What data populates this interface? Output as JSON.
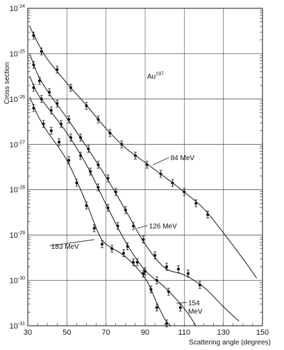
{
  "chart_data": {
    "type": "scatter",
    "title": "",
    "xlabel": "Scattering angle (degrees)",
    "ylabel": "Cross section",
    "x_scale": "linear",
    "y_scale": "log",
    "xlim": [
      30,
      150
    ],
    "ylim": [
      1e-31,
      1e-24
    ],
    "x_ticks": [
      30,
      50,
      70,
      90,
      110,
      130,
      150
    ],
    "y_ticks": [
      {
        "base": "10",
        "exp": "-24",
        "value": -24
      },
      {
        "base": "10",
        "exp": "-25",
        "value": -25
      },
      {
        "base": "10",
        "exp": "-26",
        "value": -26
      },
      {
        "base": "10",
        "exp": "-27",
        "value": -27
      },
      {
        "base": "10",
        "exp": "-28",
        "value": -28
      },
      {
        "base": "10",
        "exp": "-29",
        "value": -29
      },
      {
        "base": "10",
        "exp": "-30",
        "value": -30
      },
      {
        "base": "10",
        "exp": "-31",
        "value": -31
      }
    ],
    "grid": true,
    "annotations": {
      "target_base": "Au",
      "target_sup": "197",
      "target_pos": [
        91,
        -25.55
      ]
    },
    "series": [
      {
        "name": "84 MeV",
        "label_lines": [
          "84 MeV"
        ],
        "label_pos": [
          103,
          -27.35
        ],
        "arrow_to": [
          94,
          -27.45
        ],
        "points": [
          [
            33,
            -24.6
          ],
          [
            37,
            -24.95
          ],
          [
            45,
            -25.35
          ],
          [
            52,
            -25.75
          ],
          [
            60,
            -26.15
          ],
          [
            66,
            -26.45
          ],
          [
            72,
            -26.75
          ],
          [
            78,
            -27.0
          ],
          [
            85,
            -27.25
          ],
          [
            91,
            -27.45
          ],
          [
            98,
            -27.65
          ],
          [
            104,
            -27.85
          ],
          [
            110,
            -28.05
          ],
          [
            116,
            -28.3
          ],
          [
            122,
            -28.55
          ]
        ],
        "curve": [
          [
            31,
            -24.4
          ],
          [
            35,
            -24.75
          ],
          [
            40,
            -25.12
          ],
          [
            50,
            -25.65
          ],
          [
            60,
            -26.14
          ],
          [
            70,
            -26.65
          ],
          [
            80,
            -27.08
          ],
          [
            90,
            -27.4
          ],
          [
            100,
            -27.72
          ],
          [
            110,
            -28.05
          ],
          [
            120,
            -28.42
          ],
          [
            130,
            -28.95
          ],
          [
            140,
            -29.52
          ],
          [
            147,
            -29.95
          ]
        ]
      },
      {
        "name": "126 MeV",
        "label_lines": [
          "126 MeV"
        ],
        "label_pos": [
          92,
          -28.85
        ],
        "arrow_to": [
          86,
          -28.85
        ],
        "points": [
          [
            33,
            -25.25
          ],
          [
            36,
            -25.6
          ],
          [
            41,
            -25.85
          ],
          [
            45,
            -26.1
          ],
          [
            51,
            -26.45
          ],
          [
            57,
            -26.85
          ],
          [
            61,
            -27.1
          ],
          [
            66,
            -27.45
          ],
          [
            71,
            -27.75
          ],
          [
            75,
            -28.05
          ],
          [
            80,
            -28.45
          ],
          [
            84,
            -28.8
          ],
          [
            89,
            -29.1
          ],
          [
            95,
            -29.45
          ],
          [
            101,
            -29.7
          ],
          [
            107,
            -29.75
          ],
          [
            112,
            -29.85
          ],
          [
            118,
            -30.1
          ]
        ],
        "curve": [
          [
            31,
            -25.0
          ],
          [
            35,
            -25.45
          ],
          [
            40,
            -25.82
          ],
          [
            50,
            -26.42
          ],
          [
            60,
            -27.05
          ],
          [
            70,
            -27.72
          ],
          [
            80,
            -28.45
          ],
          [
            90,
            -29.2
          ],
          [
            100,
            -29.72
          ],
          [
            110,
            -29.88
          ],
          [
            120,
            -30.15
          ],
          [
            130,
            -30.58
          ],
          [
            138,
            -30.9
          ]
        ]
      },
      {
        "name": "154 MeV",
        "label_lines": [
          "154",
          "MeV"
        ],
        "label_pos": [
          112,
          -30.55
        ],
        "arrow_to": [
          106,
          -30.5
        ],
        "points": [
          [
            33,
            -25.75
          ],
          [
            37,
            -26.0
          ],
          [
            42,
            -26.25
          ],
          [
            47,
            -26.55
          ],
          [
            52,
            -26.85
          ],
          [
            57,
            -27.25
          ],
          [
            62,
            -27.6
          ],
          [
            66,
            -27.95
          ],
          [
            71,
            -28.4
          ],
          [
            76,
            -28.8
          ],
          [
            81,
            -29.25
          ],
          [
            86,
            -29.6
          ],
          [
            90,
            -29.8
          ],
          [
            96,
            -30.0
          ],
          [
            102,
            -30.25
          ],
          [
            108,
            -30.6
          ]
        ],
        "curve": [
          [
            31,
            -25.5
          ],
          [
            35,
            -25.88
          ],
          [
            40,
            -26.18
          ],
          [
            50,
            -26.75
          ],
          [
            60,
            -27.45
          ],
          [
            70,
            -28.32
          ],
          [
            80,
            -29.15
          ],
          [
            90,
            -29.78
          ],
          [
            100,
            -30.15
          ],
          [
            110,
            -30.62
          ],
          [
            116,
            -31.0
          ]
        ]
      },
      {
        "name": "183 MeV",
        "label_lines": [
          "183 MeV"
        ],
        "label_pos": [
          42,
          -29.3
        ],
        "arrow_to": [
          64,
          -29.1
        ],
        "points": [
          [
            33,
            -26.2
          ],
          [
            38,
            -26.55
          ],
          [
            42,
            -26.7
          ],
          [
            46,
            -26.95
          ],
          [
            51,
            -27.35
          ],
          [
            55,
            -27.85
          ],
          [
            60,
            -28.35
          ],
          [
            64,
            -28.85
          ],
          [
            68,
            -29.2
          ],
          [
            73,
            -29.3
          ],
          [
            79,
            -29.4
          ],
          [
            84,
            -29.6
          ],
          [
            89,
            -29.85
          ],
          [
            93,
            -30.2
          ],
          [
            96,
            -30.6
          ],
          [
            101,
            -30.95
          ]
        ],
        "curve": [
          [
            31,
            -25.95
          ],
          [
            35,
            -26.35
          ],
          [
            40,
            -26.72
          ],
          [
            50,
            -27.35
          ],
          [
            60,
            -28.3
          ],
          [
            66,
            -28.95
          ],
          [
            70,
            -29.2
          ],
          [
            80,
            -29.48
          ],
          [
            90,
            -29.95
          ],
          [
            96,
            -30.5
          ],
          [
            100,
            -30.85
          ],
          [
            103,
            -31.0
          ]
        ]
      }
    ]
  }
}
